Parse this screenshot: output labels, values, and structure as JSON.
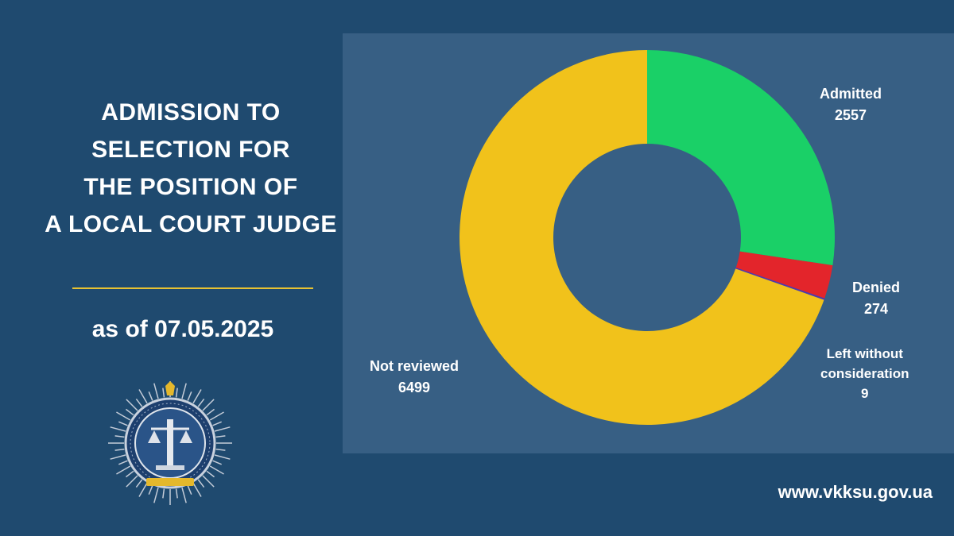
{
  "title_lines": [
    "ADMISSION TO",
    "SELECTION FOR",
    "THE POSITION OF",
    "A LOCAL COURT JUDGE"
  ],
  "as_of": "as of 07.05.2025",
  "website": "www.vkksu.gov.ua",
  "colors": {
    "background": "#1f4a6f",
    "panel": "#375f84",
    "accent_line": "#e7c232"
  },
  "chart_data": {
    "type": "pie",
    "donut": true,
    "slices": [
      {
        "label": "Admitted",
        "value": 2557,
        "value_text": "2557",
        "color": "#1ad067"
      },
      {
        "label": "Denied",
        "value": 274,
        "value_text": "274",
        "color": "#e3252b"
      },
      {
        "label": "Left without consideration",
        "label_lines": [
          "Left without",
          "consideration"
        ],
        "value": 9,
        "value_text": "9",
        "color": "#4a3cb0"
      },
      {
        "label": "Not reviewed",
        "value": 6499,
        "value_text": "6499",
        "color": "#f1c21b"
      }
    ]
  }
}
